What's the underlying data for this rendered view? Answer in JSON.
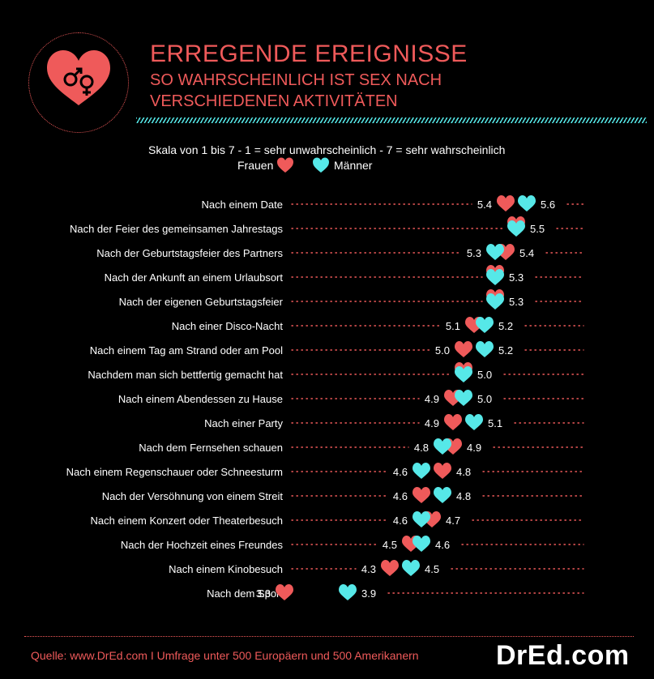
{
  "header": {
    "title": "ERREGENDE EREIGNISSE",
    "subtitle_line1": "SO WAHRSCHEINLICH IST SEX NACH",
    "subtitle_line2": "VERSCHIEDENEN AKTIVITÄTEN"
  },
  "scale_note": "Skala von 1 bis 7 - 1 = sehr unwahrscheinlich  - 7 = sehr wahrscheinlich",
  "legend": {
    "women": "Frauen",
    "men": "Männer"
  },
  "colors": {
    "women": "#ef5a5a",
    "men": "#56e8e8",
    "background": "#000000",
    "accent": "#ef5a5a"
  },
  "icons": {
    "logo": "gender-heart-icon",
    "women_marker": "heart-icon",
    "men_marker": "heart-icon"
  },
  "chart_data": {
    "type": "scatter",
    "title": "",
    "xlim": [
      1,
      7
    ],
    "categories": [
      "Nach einem Date",
      "Nach der Feier des gemeinsamen Jahrestags",
      "Nach der Geburtstagsfeier des Partners",
      "Nach der Ankunft an einem Urlaubsort",
      "Nach der eigenen Geburtstagsfeier",
      "Nach einer Disco-Nacht",
      "Nach einem Tag am Strand oder am Pool",
      "Nachdem man sich bettfertig gemacht hat",
      "Nach einem Abendessen zu Hause",
      "Nach einer Party",
      "Nach dem Fernsehen schauen",
      "Nach einem Regenschauer oder Schneesturm",
      "Nach der Versöhnung von einem Streit",
      "Nach einem Konzert oder Theaterbesuch",
      "Nach der Hochzeit eines Freundes",
      "Nach einem Kinobesuch",
      "Nach dem Sport"
    ],
    "series": [
      {
        "name": "Frauen",
        "values": [
          5.4,
          5.5,
          5.4,
          5.3,
          5.3,
          5.1,
          5.0,
          5.0,
          4.9,
          4.9,
          4.9,
          4.8,
          4.6,
          4.7,
          4.5,
          4.3,
          3.3
        ]
      },
      {
        "name": "Männer",
        "values": [
          5.6,
          5.5,
          5.3,
          5.3,
          5.3,
          5.2,
          5.2,
          5.0,
          5.0,
          5.1,
          4.8,
          4.6,
          4.8,
          4.6,
          4.6,
          4.5,
          3.9
        ]
      }
    ],
    "labels": [
      [
        "5.4",
        "5.6"
      ],
      [
        "5.5"
      ],
      [
        "5.3",
        "5.4"
      ],
      [
        "5.3"
      ],
      [
        "5.3"
      ],
      [
        "5.1",
        "5.2"
      ],
      [
        "5.0",
        "5.2"
      ],
      [
        "5.0"
      ],
      [
        "4.9",
        "5.0"
      ],
      [
        "4.9",
        "5.1"
      ],
      [
        "4.8",
        "4.9"
      ],
      [
        "4.6",
        "4.8"
      ],
      [
        "4.6",
        "4.8"
      ],
      [
        "4.6",
        "4.7"
      ],
      [
        "4.5",
        "4.6"
      ],
      [
        "4.3",
        "4.5"
      ],
      [
        "3.3",
        "3.9"
      ]
    ]
  },
  "footer": {
    "source": "Quelle: www.DrEd.com I Umfrage unter 500 Europäern und 500 Amerikanern",
    "brand": "DrEd.com"
  }
}
